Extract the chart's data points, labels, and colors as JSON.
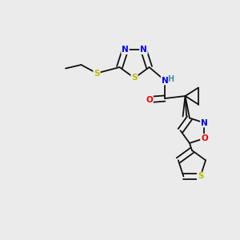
{
  "background_color": "#ebebeb",
  "figure_size": [
    3.0,
    3.0
  ],
  "dpi": 100,
  "atom_colors": {
    "C": "#000000",
    "N": "#0000ee",
    "O": "#ee0000",
    "S": "#bbbb00",
    "H": "#4a8fa0"
  },
  "bond_color": "#111111",
  "bond_lw": 1.3
}
